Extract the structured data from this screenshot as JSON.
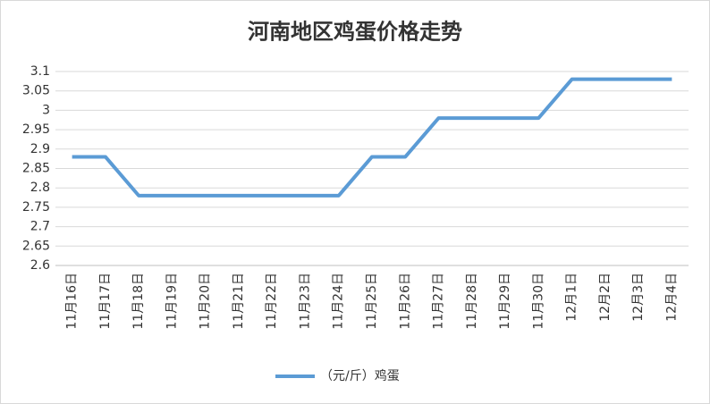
{
  "chart_data": {
    "type": "line",
    "title": "河南地区鸡蛋价格走势",
    "categories": [
      "11月16日",
      "11月17日",
      "11月18日",
      "11月19日",
      "11月20日",
      "11月21日",
      "11月22日",
      "11月23日",
      "11月24日",
      "11月25日",
      "11月26日",
      "11月27日",
      "11月28日",
      "11月29日",
      "11月30日",
      "12月1日",
      "12月2日",
      "12月3日",
      "12月4日"
    ],
    "series": [
      {
        "name": "（元/斤）鸡蛋",
        "color": "#5b9bd5",
        "values": [
          2.88,
          2.88,
          2.78,
          2.78,
          2.78,
          2.78,
          2.78,
          2.78,
          2.78,
          2.88,
          2.88,
          2.98,
          2.98,
          2.98,
          2.98,
          3.08,
          3.08,
          3.08,
          3.08
        ]
      }
    ],
    "ylim": [
      2.6,
      3.1
    ],
    "yticks": [
      2.6,
      2.65,
      2.7,
      2.75,
      2.8,
      2.85,
      2.9,
      2.95,
      3,
      3.05,
      3.1
    ],
    "grid": true,
    "legend": "bottom"
  }
}
